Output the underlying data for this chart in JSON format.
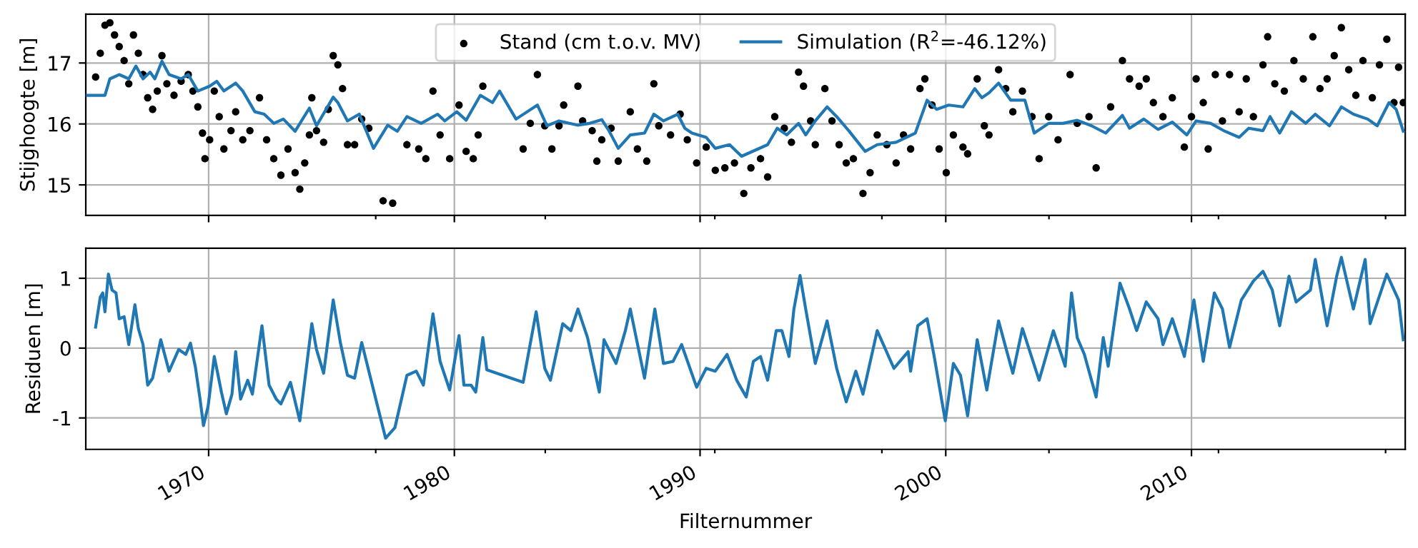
{
  "chart_data": [
    {
      "type": "line",
      "ylabel": "Stijghoogte [m]",
      "xlim": [
        1965.0,
        2018.7
      ],
      "ylim": [
        14.5,
        17.8
      ],
      "yticks": [
        15,
        16,
        17
      ],
      "xticks": [
        1970,
        {
          "value": 1976.8,
          "label": null
        },
        1980,
        {
          "value": 1983.7,
          "label": null
        },
        1990,
        {
          "value": 1990.6,
          "label": null
        },
        {
          "value": 1997.4,
          "label": null
        },
        2000,
        {
          "value": 2004.2,
          "label": null
        },
        2010,
        {
          "value": 2011.1,
          "label": null
        },
        {
          "value": 2017.9,
          "label": null
        }
      ],
      "grid": true,
      "legend": "top",
      "tick_labels": "y",
      "series": [
        {
          "name": "Stand (cm t.o.v. MV)",
          "type": "scatter",
          "marker": "circle",
          "color": "#000000",
          "x": [
            1965.4,
            1965.59,
            1965.78,
            1965.98,
            1966.17,
            1966.36,
            1966.56,
            1966.75,
            1966.94,
            1967.14,
            1967.33,
            1967.52,
            1967.72,
            1967.91,
            1968.1,
            1968.3,
            1968.59,
            1968.88,
            1969.17,
            1969.36,
            1969.56,
            1969.75,
            1969.85,
            1970.04,
            1970.23,
            1970.43,
            1970.62,
            1970.91,
            1971.1,
            1971.39,
            1971.68,
            1972.07,
            1972.36,
            1972.65,
            1972.94,
            1973.23,
            1973.52,
            1973.71,
            1973.91,
            1974.1,
            1974.2,
            1974.39,
            1974.68,
            1974.87,
            1975.07,
            1975.26,
            1975.45,
            1975.65,
            1975.94,
            1976.23,
            1976.52,
            1977.1,
            1977.49,
            1978.07,
            1978.55,
            1978.84,
            1979.13,
            1979.42,
            1979.81,
            1980.19,
            1980.48,
            1980.77,
            1980.97,
            1981.16,
            1982.8,
            1983.09,
            1983.38,
            1983.68,
            1983.97,
            1984.26,
            1984.45,
            1985.03,
            1985.22,
            1985.61,
            1985.8,
            1986.0,
            1986.38,
            1986.67,
            1987.16,
            1987.45,
            1987.83,
            1988.12,
            1988.32,
            1988.8,
            1989.19,
            1989.48,
            1989.86,
            1990.25,
            1990.62,
            1991.01,
            1991.4,
            1991.78,
            1992.07,
            1992.46,
            1992.75,
            1993.04,
            1993.43,
            1993.72,
            1994.01,
            1994.21,
            1994.5,
            1994.69,
            1995.08,
            1995.37,
            1995.66,
            1995.95,
            1996.24,
            1996.63,
            1996.92,
            1997.21,
            1997.6,
            1997.98,
            1998.28,
            1998.57,
            1998.95,
            1999.15,
            1999.44,
            1999.73,
            2000.02,
            2000.31,
            2000.7,
            2000.89,
            2001.28,
            2001.57,
            2001.76,
            2002.15,
            2002.44,
            2002.73,
            2003.12,
            2003.51,
            2003.8,
            2004.19,
            2004.57,
            2005.06,
            2005.35,
            2005.83,
            2006.12,
            2006.71,
            2007.19,
            2007.48,
            2007.87,
            2008.16,
            2008.45,
            2008.84,
            2009.22,
            2009.71,
            2010.0,
            2010.19,
            2010.48,
            2010.68,
            2010.97,
            2011.26,
            2011.55,
            2011.94,
            2012.23,
            2012.52,
            2012.91,
            2013.1,
            2013.39,
            2013.78,
            2014.17,
            2014.55,
            2014.94,
            2015.23,
            2015.52,
            2015.81,
            2016.1,
            2016.4,
            2016.69,
            2016.98,
            2017.36,
            2017.65,
            2017.95,
            2018.24,
            2018.43,
            2018.62
          ],
          "values": [
            16.77,
            17.16,
            17.62,
            17.66,
            17.46,
            17.27,
            17.04,
            16.66,
            17.46,
            17.16,
            16.81,
            16.43,
            16.24,
            16.54,
            17.12,
            16.66,
            16.47,
            16.7,
            16.81,
            16.54,
            16.28,
            15.85,
            15.43,
            15.74,
            16.54,
            16.12,
            15.59,
            15.89,
            16.2,
            15.74,
            15.89,
            16.43,
            15.74,
            15.43,
            15.16,
            15.59,
            15.2,
            14.93,
            15.36,
            15.82,
            16.43,
            15.89,
            15.7,
            16.24,
            17.12,
            16.97,
            16.58,
            15.66,
            15.66,
            16.08,
            15.93,
            14.74,
            14.7,
            15.66,
            15.59,
            15.43,
            16.54,
            15.82,
            15.43,
            16.31,
            15.55,
            15.43,
            15.82,
            16.62,
            15.59,
            16.01,
            16.81,
            15.97,
            15.59,
            15.97,
            16.31,
            16.62,
            16.05,
            15.89,
            15.39,
            15.74,
            15.93,
            15.39,
            16.2,
            15.59,
            15.39,
            16.66,
            15.97,
            15.82,
            16.16,
            15.74,
            15.36,
            15.62,
            15.24,
            15.28,
            15.36,
            14.86,
            15.28,
            15.43,
            15.13,
            16.12,
            15.93,
            15.7,
            16.85,
            16.62,
            16.05,
            15.66,
            16.58,
            16.05,
            15.66,
            15.36,
            15.43,
            14.86,
            15.2,
            15.82,
            15.66,
            15.36,
            15.82,
            15.59,
            16.58,
            16.74,
            16.31,
            15.59,
            15.2,
            15.82,
            15.62,
            15.51,
            16.74,
            15.97,
            15.82,
            16.89,
            16.58,
            16.2,
            16.54,
            16.12,
            15.43,
            16.12,
            15.74,
            16.81,
            16.01,
            16.12,
            15.28,
            16.28,
            17.04,
            16.74,
            16.62,
            16.74,
            16.35,
            16.12,
            16.43,
            15.62,
            16.12,
            16.74,
            16.35,
            15.59,
            16.81,
            16.05,
            16.81,
            16.2,
            16.74,
            16.12,
            16.97,
            17.43,
            16.66,
            16.54,
            17.04,
            16.74,
            17.43,
            16.58,
            16.74,
            17.12,
            17.58,
            16.89,
            16.47,
            17.04,
            16.43,
            16.97,
            17.39,
            16.35,
            16.93,
            16.35
          ]
        },
        {
          "name": "Simulation (R$^{2}$=-46.12%)",
          "color": "#1f77b4",
          "x": [
            1965.07,
            1965.78,
            1965.98,
            1966.36,
            1966.75,
            1967.04,
            1967.33,
            1967.62,
            1967.81,
            1968.1,
            1968.39,
            1968.88,
            1969.17,
            1969.56,
            1970.04,
            1970.33,
            1970.62,
            1971.1,
            1971.39,
            1971.88,
            1972.26,
            1972.65,
            1973.04,
            1973.52,
            1974.1,
            1974.39,
            1975.07,
            1975.26,
            1975.65,
            1976.13,
            1976.71,
            1977.29,
            1977.68,
            1978.07,
            1978.65,
            1979.32,
            1979.61,
            1980.1,
            1980.48,
            1981.06,
            1981.55,
            1981.84,
            1982.51,
            1983.38,
            1983.77,
            1984.26,
            1985.03,
            1985.51,
            1986.0,
            1986.29,
            1986.67,
            1987.16,
            1987.74,
            1988.12,
            1988.51,
            1989.09,
            1989.38,
            1989.67,
            1990.25,
            1990.62,
            1991.2,
            1991.69,
            1992.36,
            1992.75,
            1993.14,
            1993.53,
            1994.01,
            1994.3,
            1994.69,
            1995.17,
            1995.56,
            1996.05,
            1996.72,
            1997.21,
            1997.98,
            1998.76,
            1999.24,
            1999.63,
            2000.12,
            2000.7,
            2001.18,
            2001.47,
            2001.76,
            2002.15,
            2002.64,
            2003.22,
            2003.6,
            2004.19,
            2004.77,
            2005.35,
            2005.93,
            2006.51,
            2007.19,
            2007.48,
            2008.06,
            2008.64,
            2009.22,
            2009.81,
            2010.19,
            2010.78,
            2011.36,
            2011.94,
            2012.33,
            2012.91,
            2013.2,
            2013.59,
            2014.07,
            2014.65,
            2015.04,
            2015.62,
            2016.1,
            2016.59,
            2017.17,
            2017.56,
            2018.04,
            2018.33,
            2018.62
          ],
          "values": [
            16.47,
            16.47,
            16.74,
            16.81,
            16.74,
            16.95,
            16.74,
            16.85,
            16.74,
            17.03,
            16.81,
            16.74,
            16.81,
            16.54,
            16.62,
            16.7,
            16.54,
            16.67,
            16.54,
            16.2,
            16.16,
            16.01,
            16.08,
            15.88,
            16.26,
            15.97,
            16.44,
            16.35,
            16.05,
            16.16,
            15.6,
            15.98,
            15.88,
            16.12,
            16.01,
            16.16,
            16.05,
            16.2,
            16.06,
            16.47,
            16.35,
            16.54,
            16.08,
            16.31,
            15.97,
            16.05,
            15.98,
            16.01,
            16.07,
            15.89,
            15.6,
            15.82,
            15.85,
            16.16,
            16.05,
            16.16,
            15.93,
            15.85,
            15.78,
            15.6,
            15.66,
            15.47,
            15.59,
            15.66,
            15.93,
            15.82,
            16.01,
            15.82,
            16.05,
            16.28,
            16.12,
            15.89,
            15.55,
            15.66,
            15.7,
            15.85,
            16.39,
            16.24,
            16.31,
            16.28,
            16.58,
            16.43,
            16.51,
            16.67,
            16.39,
            16.39,
            15.85,
            16.01,
            16.01,
            16.06,
            15.97,
            15.85,
            16.14,
            15.93,
            16.08,
            15.91,
            16.03,
            15.82,
            16.05,
            16.01,
            15.88,
            15.78,
            15.93,
            15.89,
            16.12,
            15.85,
            16.2,
            16.01,
            16.16,
            15.97,
            16.28,
            16.16,
            16.08,
            15.97,
            16.35,
            16.24,
            15.88
          ]
        }
      ]
    },
    {
      "type": "line",
      "xlabel": "Filternummer",
      "ylabel": "Residuen [m]",
      "xlim": [
        1965.0,
        2018.7
      ],
      "ylim": [
        -1.45,
        1.43
      ],
      "yticks": [
        -1,
        0,
        1
      ],
      "xticks": [
        1970,
        {
          "value": 1976.8,
          "label": null
        },
        1980,
        {
          "value": 1983.7,
          "label": null
        },
        1990,
        {
          "value": 1990.6,
          "label": null
        },
        {
          "value": 1997.4,
          "label": null
        },
        2000,
        {
          "value": 2004.2,
          "label": null
        },
        2010,
        {
          "value": 2011.1,
          "label": null
        },
        {
          "value": 2017.9,
          "label": null
        }
      ],
      "grid": true,
      "series": [
        {
          "color": "#1f77b4",
          "x": [
            1965.4,
            1965.59,
            1965.69,
            1965.78,
            1965.92,
            1966.07,
            1966.23,
            1966.36,
            1966.56,
            1966.75,
            1967.0,
            1967.14,
            1967.33,
            1967.52,
            1967.72,
            1968.05,
            1968.39,
            1968.78,
            1969.07,
            1969.26,
            1969.46,
            1969.65,
            1969.79,
            1969.98,
            1970.23,
            1970.52,
            1970.72,
            1970.95,
            1971.1,
            1971.3,
            1971.59,
            1971.78,
            1972.17,
            1972.46,
            1972.75,
            1972.94,
            1973.33,
            1973.71,
            1974.2,
            1974.39,
            1974.68,
            1975.07,
            1975.36,
            1975.65,
            1975.94,
            1976.23,
            1976.52,
            1977.2,
            1977.58,
            1978.07,
            1978.45,
            1978.74,
            1979.13,
            1979.42,
            1979.81,
            1980.19,
            1980.39,
            1980.68,
            1980.87,
            1981.16,
            1981.32,
            1982.8,
            1983.33,
            1983.68,
            1983.91,
            1984.41,
            1984.74,
            1985.03,
            1985.42,
            1985.9,
            1986.09,
            1986.58,
            1986.96,
            1987.16,
            1987.74,
            1988.16,
            1988.51,
            1988.9,
            1989.25,
            1989.86,
            1990.25,
            1990.62,
            1991.1,
            1991.49,
            1991.88,
            1992.17,
            1992.46,
            1992.75,
            1993.1,
            1993.33,
            1993.62,
            1993.82,
            1994.07,
            1994.3,
            1994.69,
            1995.17,
            1995.56,
            1995.95,
            1996.34,
            1996.63,
            1997.21,
            1997.89,
            1998.47,
            1998.57,
            1998.86,
            1999.24,
            1999.53,
            1999.98,
            2000.31,
            2000.6,
            2000.89,
            2001.28,
            2001.67,
            2002.15,
            2002.44,
            2002.73,
            2003.12,
            2003.8,
            2004.38,
            2004.86,
            2005.12,
            2005.35,
            2005.64,
            2006.12,
            2006.41,
            2006.61,
            2007.09,
            2007.48,
            2007.77,
            2008.16,
            2008.64,
            2008.84,
            2009.22,
            2009.71,
            2010.1,
            2010.48,
            2010.93,
            2011.26,
            2011.55,
            2012.03,
            2012.52,
            2012.91,
            2013.29,
            2013.59,
            2013.97,
            2014.26,
            2014.84,
            2015.04,
            2015.52,
            2015.91,
            2016.1,
            2016.59,
            2017.07,
            2017.27,
            2017.95,
            2018.43,
            2018.62
          ],
          "values": [
            0.3,
            0.73,
            0.79,
            0.52,
            1.06,
            0.83,
            0.79,
            0.42,
            0.45,
            0.05,
            0.62,
            0.28,
            0.05,
            -0.53,
            -0.43,
            0.12,
            -0.33,
            -0.02,
            -0.09,
            0.07,
            -0.27,
            -0.73,
            -1.11,
            -0.83,
            -0.12,
            -0.63,
            -0.94,
            -0.66,
            -0.05,
            -0.73,
            -0.46,
            -0.66,
            0.32,
            -0.53,
            -0.73,
            -0.8,
            -0.49,
            -1.04,
            0.35,
            -0.02,
            -0.36,
            0.69,
            0.08,
            -0.39,
            -0.43,
            0.08,
            -0.33,
            -1.29,
            -1.14,
            -0.39,
            -0.33,
            -0.53,
            0.49,
            -0.19,
            -0.6,
            0.18,
            -0.53,
            -0.53,
            -0.63,
            0.15,
            -0.31,
            -0.49,
            0.52,
            -0.29,
            -0.46,
            0.35,
            0.25,
            0.56,
            0.15,
            -0.63,
            0.12,
            -0.22,
            0.25,
            0.56,
            -0.43,
            0.56,
            -0.22,
            -0.19,
            0.05,
            -0.56,
            -0.29,
            -0.33,
            -0.09,
            -0.46,
            -0.7,
            -0.19,
            -0.12,
            -0.46,
            0.25,
            0.25,
            -0.12,
            0.56,
            1.04,
            0.56,
            -0.22,
            0.39,
            -0.29,
            -0.77,
            -0.33,
            -0.66,
            0.25,
            -0.29,
            -0.05,
            -0.33,
            0.32,
            0.42,
            -0.12,
            -1.04,
            -0.22,
            -0.39,
            -0.97,
            0.12,
            -0.6,
            0.39,
            0.01,
            -0.36,
            0.28,
            -0.46,
            0.25,
            -0.26,
            0.79,
            0.15,
            -0.09,
            -0.7,
            0.15,
            -0.26,
            0.93,
            0.56,
            0.25,
            0.66,
            0.42,
            0.05,
            0.42,
            -0.12,
            0.69,
            -0.19,
            0.79,
            0.56,
            0.01,
            0.69,
            0.96,
            1.1,
            0.83,
            0.32,
            1.03,
            0.66,
            0.83,
            1.27,
            0.32,
            1.03,
            1.3,
            0.56,
            1.27,
            0.35,
            1.06,
            0.69,
            0.12
          ]
        }
      ]
    }
  ]
}
